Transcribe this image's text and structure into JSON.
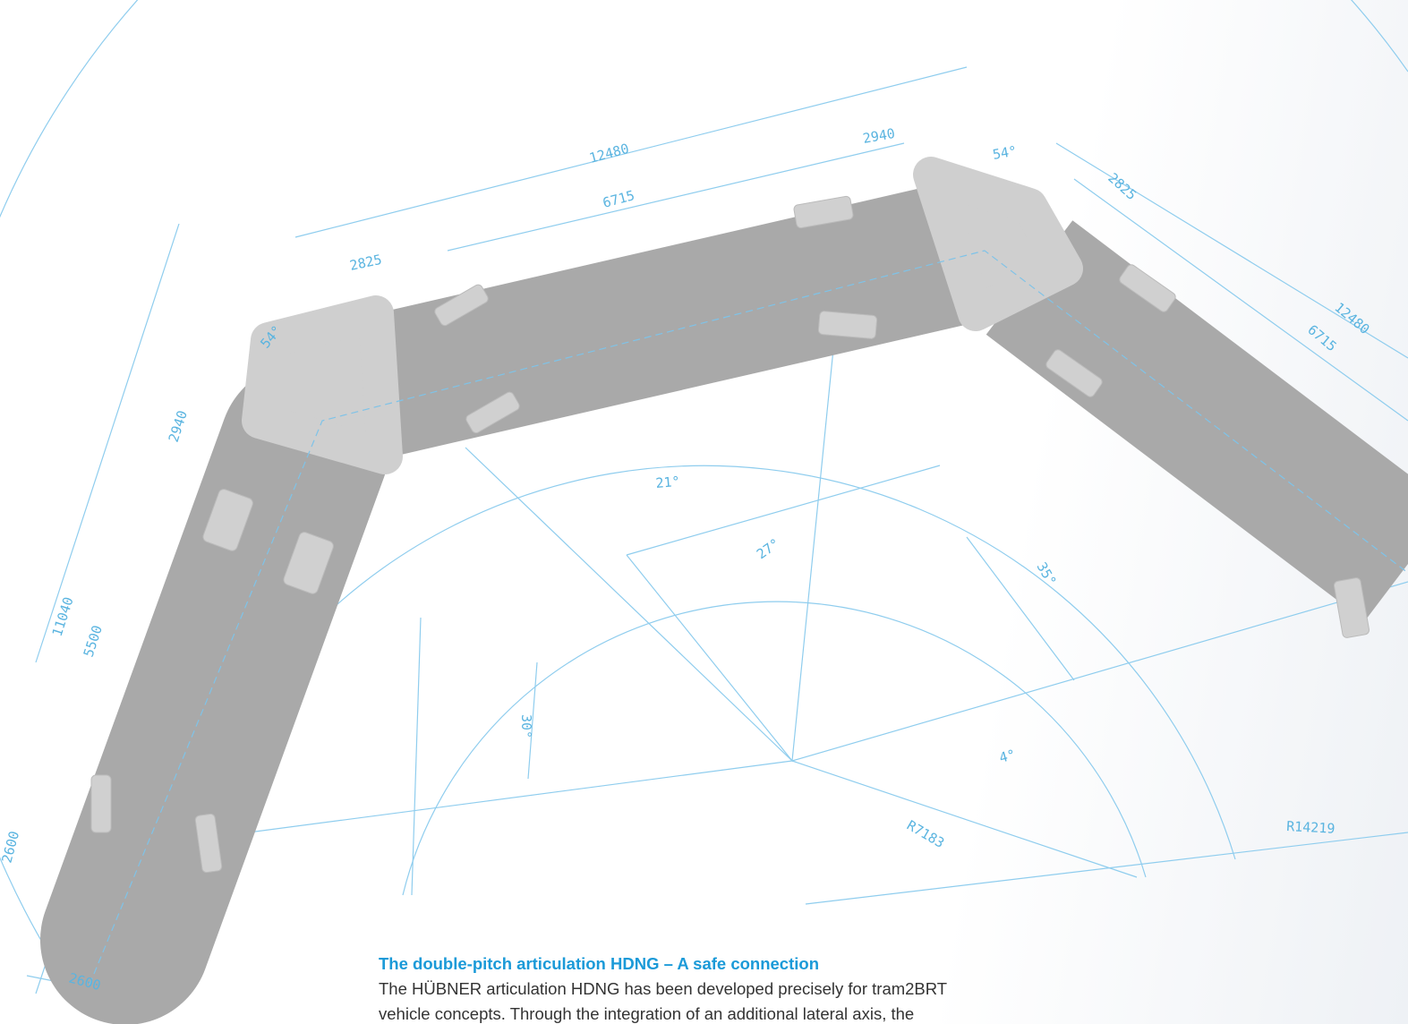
{
  "dimensions": [
    "12480",
    "6715",
    "2940",
    "54°",
    "2825",
    "2825",
    "54°",
    "2940",
    "12480",
    "6715",
    "21°",
    "27°",
    "35°",
    "30°",
    "4°",
    "R7183",
    "R14219",
    "11040",
    "5500",
    "2600",
    "2600"
  ],
  "caption": {
    "title": "The double-pitch articulation HDNG – A safe connection",
    "lines": [
      "The HÜBNER articulation HDNG has been developed precisely for tram2BRT",
      "vehicle concepts. Through the integration of an additional lateral axis, the"
    ]
  }
}
